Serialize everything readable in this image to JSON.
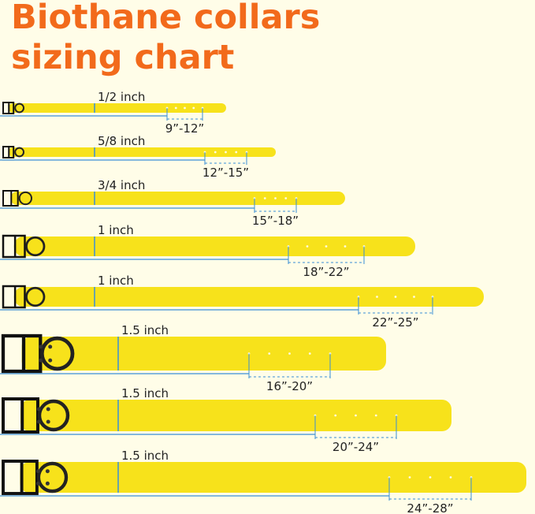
{
  "header": {
    "title": [
      "Biothane collars",
      "sizing chart"
    ]
  },
  "collars": [
    {
      "width": "1/2 inch",
      "size": "9”-12”"
    },
    {
      "width": "5/8 inch",
      "size": "12”-15”"
    },
    {
      "width": "3/4 inch",
      "size": "15”-18”"
    },
    {
      "width": "1 inch",
      "size": "18”-22”"
    },
    {
      "width": "1 inch",
      "size": "22”-25”"
    },
    {
      "width": "1.5 inch",
      "size": "16”-20”"
    },
    {
      "width": "1.5 inch",
      "size": "20”-24”"
    },
    {
      "width": "1.5 inch",
      "size": "24”-28”"
    }
  ]
}
